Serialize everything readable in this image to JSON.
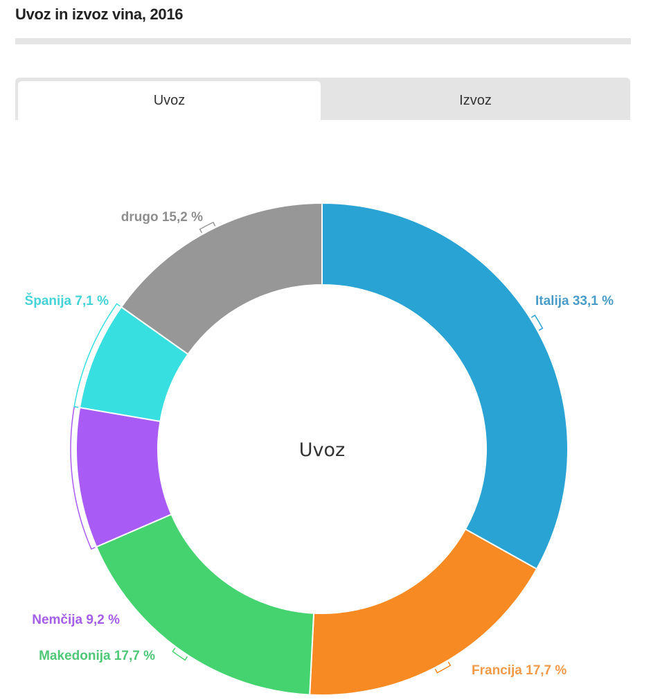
{
  "page": {
    "title": "Uvoz in izvoz vina, 2016"
  },
  "tabs": [
    {
      "label": "Uvoz",
      "active": true
    },
    {
      "label": "Izvoz",
      "active": false
    }
  ],
  "chart_data": {
    "type": "pie",
    "variant": "donut",
    "title": "Uvoz in izvoz vina, 2016",
    "center_label": "Uvoz",
    "categories": [
      "Italija",
      "Francija",
      "Makedonija",
      "Nemčija",
      "Španija",
      "drugo"
    ],
    "values": [
      33.1,
      17.7,
      17.7,
      9.2,
      7.1,
      15.2
    ],
    "unit": "%",
    "colors": [
      "#29a3d4",
      "#f78a22",
      "#44d36f",
      "#a95cf5",
      "#37dfe0",
      "#979797"
    ],
    "labels": [
      "Italija 33,1 %",
      "Francija 17,7 %",
      "Makedonija 17,7 %",
      "Nemčija 9,2 %",
      "Španija 7,1 %",
      "drugo 15,2 %"
    ],
    "start_angle": "12 o'clock",
    "direction": "clockwise",
    "legend": "none (inline labels)"
  }
}
